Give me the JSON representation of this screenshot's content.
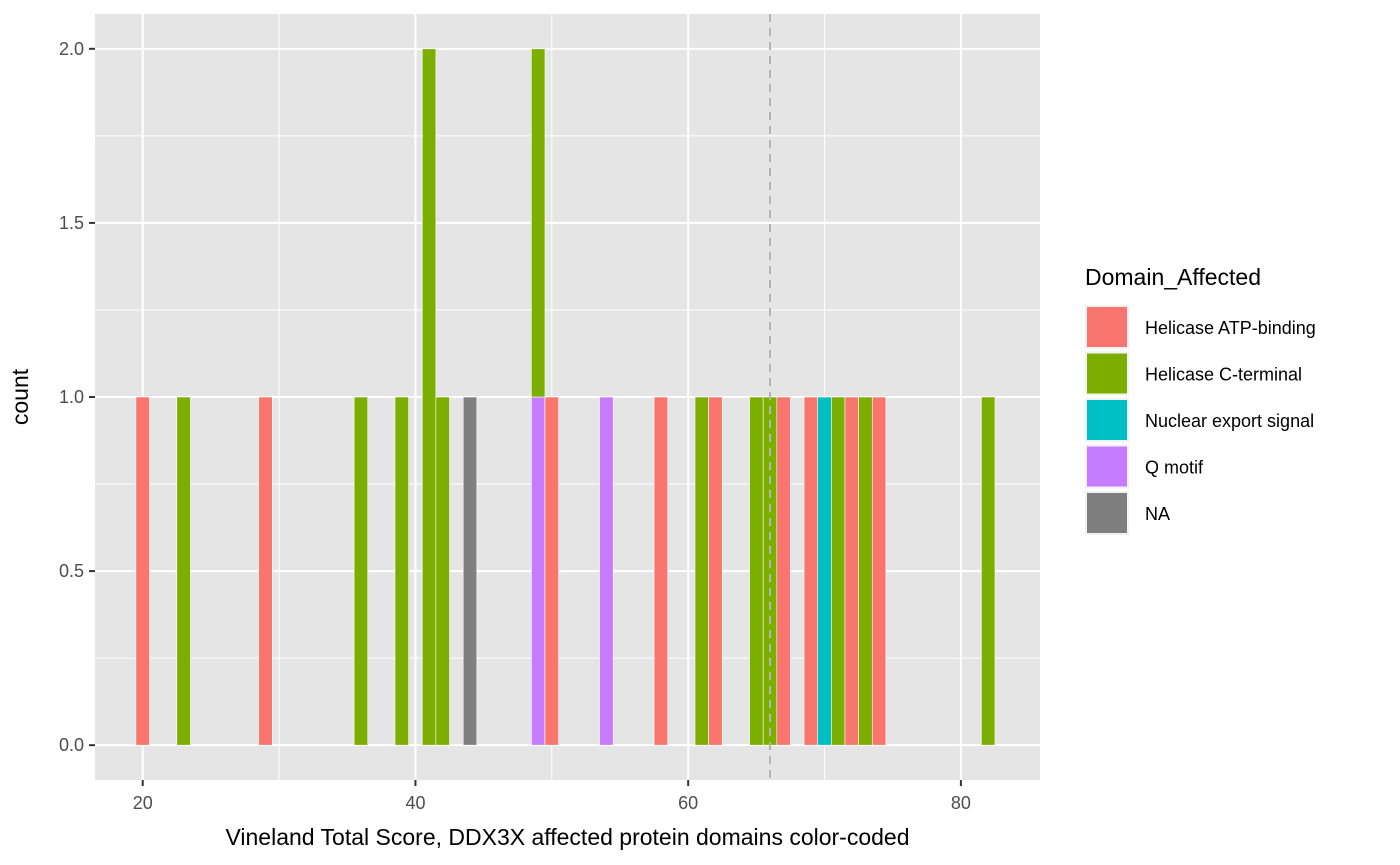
{
  "chart_data": {
    "type": "bar",
    "subtype": "stacked-histogram",
    "xlabel": "Vineland Total Score, DDX3X affected protein domains color-coded",
    "ylabel": "count",
    "xlim": [
      16.5,
      85.8
    ],
    "ylim": [
      -0.1,
      2.1
    ],
    "x_ticks": [
      20,
      40,
      60,
      80
    ],
    "x_tick_labels": [
      "20",
      "40",
      "60",
      "80"
    ],
    "y_ticks": [
      0.0,
      0.5,
      1.0,
      1.5,
      2.0
    ],
    "y_tick_labels": [
      "0.0",
      "0.5",
      "1.0",
      "1.5",
      "2.0"
    ],
    "bin_width": 1,
    "grid": true,
    "background": "#e5e5e5",
    "reference_line": {
      "x": 66,
      "style": "dashed",
      "color": "#b3b3b3"
    },
    "legend": {
      "title": "Domain_Affected",
      "position": "right",
      "entries": [
        {
          "name": "Helicase ATP-binding",
          "color": "#f8766d"
        },
        {
          "name": "Helicase C-terminal",
          "color": "#7cae00"
        },
        {
          "name": "Nuclear export signal",
          "color": "#00bfc4"
        },
        {
          "name": "Q motif",
          "color": "#c77cff"
        },
        {
          "name": "NA",
          "color": "#7f7f7f"
        }
      ]
    },
    "bars": [
      {
        "x": 20,
        "count": 1,
        "group": "Helicase ATP-binding"
      },
      {
        "x": 23,
        "count": 1,
        "group": "Helicase C-terminal"
      },
      {
        "x": 29,
        "count": 1,
        "group": "Helicase ATP-binding"
      },
      {
        "x": 36,
        "count": 1,
        "group": "Helicase C-terminal"
      },
      {
        "x": 39,
        "count": 1,
        "group": "Helicase C-terminal"
      },
      {
        "x": 41,
        "count": 2,
        "group": "Helicase C-terminal"
      },
      {
        "x": 42,
        "count": 1,
        "group": "Helicase C-terminal"
      },
      {
        "x": 44,
        "count": 1,
        "group": "NA"
      },
      {
        "x": 49,
        "count": 1,
        "group": "Q motif"
      },
      {
        "x": 49,
        "count": 1,
        "group": "Helicase C-terminal"
      },
      {
        "x": 50,
        "count": 1,
        "group": "Helicase ATP-binding"
      },
      {
        "x": 54,
        "count": 1,
        "group": "Q motif"
      },
      {
        "x": 58,
        "count": 1,
        "group": "Helicase ATP-binding"
      },
      {
        "x": 61,
        "count": 1,
        "group": "Helicase C-terminal"
      },
      {
        "x": 62,
        "count": 1,
        "group": "Helicase ATP-binding"
      },
      {
        "x": 65,
        "count": 1,
        "group": "Helicase C-terminal"
      },
      {
        "x": 66,
        "count": 1,
        "group": "Helicase C-terminal"
      },
      {
        "x": 67,
        "count": 1,
        "group": "Helicase ATP-binding"
      },
      {
        "x": 69,
        "count": 1,
        "group": "Helicase ATP-binding"
      },
      {
        "x": 70,
        "count": 1,
        "group": "Nuclear export signal"
      },
      {
        "x": 71,
        "count": 1,
        "group": "Helicase C-terminal"
      },
      {
        "x": 72,
        "count": 1,
        "group": "Helicase ATP-binding"
      },
      {
        "x": 73,
        "count": 1,
        "group": "Helicase C-terminal"
      },
      {
        "x": 74,
        "count": 1,
        "group": "Helicase ATP-binding"
      },
      {
        "x": 82,
        "count": 1,
        "group": "Helicase C-terminal"
      }
    ]
  }
}
